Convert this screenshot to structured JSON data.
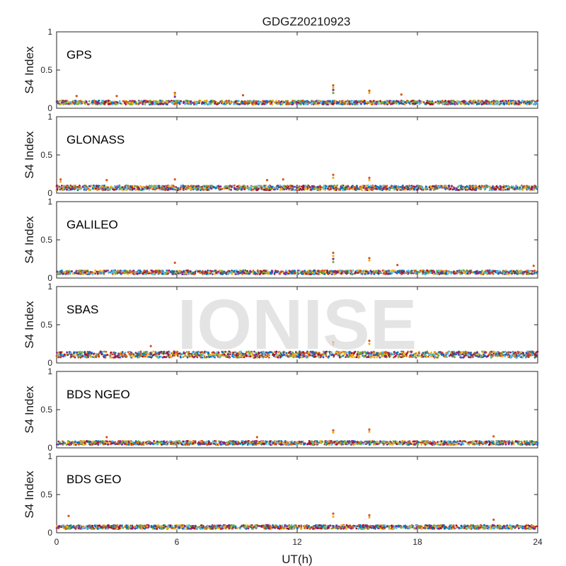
{
  "chart_data": {
    "type": "scatter",
    "title": "GDGZ20210923",
    "xlabel": "UT(h)",
    "ylabel": "S4 Index",
    "xlim": [
      0,
      24
    ],
    "ylim": [
      0,
      1
    ],
    "xticks": [
      "0",
      "6",
      "12",
      "18",
      "24"
    ],
    "yticks": [
      "0",
      "0.5",
      "1"
    ],
    "grid": false,
    "watermark": "IONISE",
    "series_colors": [
      "#0072bd",
      "#d95319",
      "#edb120",
      "#7e2f8e",
      "#77ac30",
      "#4dbeee",
      "#a2142f"
    ],
    "panels": [
      {
        "label": "GPS",
        "baseline": [
          0.05,
          0.1
        ],
        "spikes": [
          {
            "x": 5.9,
            "y": [
              0.2,
              0.18,
              0.15
            ]
          },
          {
            "x": 13.8,
            "y": [
              0.3,
              0.27,
              0.24,
              0.2
            ]
          },
          {
            "x": 15.6,
            "y": [
              0.23,
              0.2
            ]
          },
          {
            "x": 3.0,
            "y": [
              0.16
            ]
          },
          {
            "x": 9.3,
            "y": [
              0.17
            ]
          },
          {
            "x": 17.2,
            "y": [
              0.18
            ]
          },
          {
            "x": 1.0,
            "y": [
              0.16
            ]
          }
        ]
      },
      {
        "label": "GLONASS",
        "baseline": [
          0.04,
          0.1
        ],
        "spikes": [
          {
            "x": 0.2,
            "y": [
              0.18,
              0.15
            ]
          },
          {
            "x": 13.8,
            "y": [
              0.24,
              0.2
            ]
          },
          {
            "x": 15.6,
            "y": [
              0.2,
              0.17
            ]
          },
          {
            "x": 2.5,
            "y": [
              0.17
            ]
          },
          {
            "x": 5.9,
            "y": [
              0.18
            ]
          },
          {
            "x": 10.5,
            "y": [
              0.17
            ]
          },
          {
            "x": 11.3,
            "y": [
              0.18
            ]
          }
        ]
      },
      {
        "label": "GALILEO",
        "baseline": [
          0.05,
          0.1
        ],
        "spikes": [
          {
            "x": 13.8,
            "y": [
              0.33,
              0.29,
              0.25,
              0.21
            ]
          },
          {
            "x": 15.6,
            "y": [
              0.26,
              0.23
            ]
          },
          {
            "x": 5.9,
            "y": [
              0.2
            ]
          },
          {
            "x": 17.0,
            "y": [
              0.17
            ]
          },
          {
            "x": 23.8,
            "y": [
              0.16
            ]
          }
        ]
      },
      {
        "label": "SBAS",
        "baseline": [
          0.07,
          0.15
        ],
        "spikes": [
          {
            "x": 13.8,
            "y": [
              0.27,
              0.24
            ]
          },
          {
            "x": 15.6,
            "y": [
              0.29,
              0.25
            ]
          },
          {
            "x": 4.7,
            "y": [
              0.22
            ]
          }
        ]
      },
      {
        "label": "BDS NGEO",
        "baseline": [
          0.04,
          0.09
        ],
        "spikes": [
          {
            "x": 13.8,
            "y": [
              0.23,
              0.2
            ]
          },
          {
            "x": 15.6,
            "y": [
              0.24,
              0.21
            ]
          },
          {
            "x": 2.5,
            "y": [
              0.14
            ]
          },
          {
            "x": 10.0,
            "y": [
              0.14
            ]
          },
          {
            "x": 21.8,
            "y": [
              0.15
            ]
          }
        ]
      },
      {
        "label": "BDS GEO",
        "baseline": [
          0.05,
          0.1
        ],
        "spikes": [
          {
            "x": 0.6,
            "y": [
              0.22
            ]
          },
          {
            "x": 13.8,
            "y": [
              0.25,
              0.21
            ]
          },
          {
            "x": 15.6,
            "y": [
              0.23,
              0.2
            ]
          },
          {
            "x": 21.8,
            "y": [
              0.17
            ]
          }
        ]
      }
    ]
  }
}
